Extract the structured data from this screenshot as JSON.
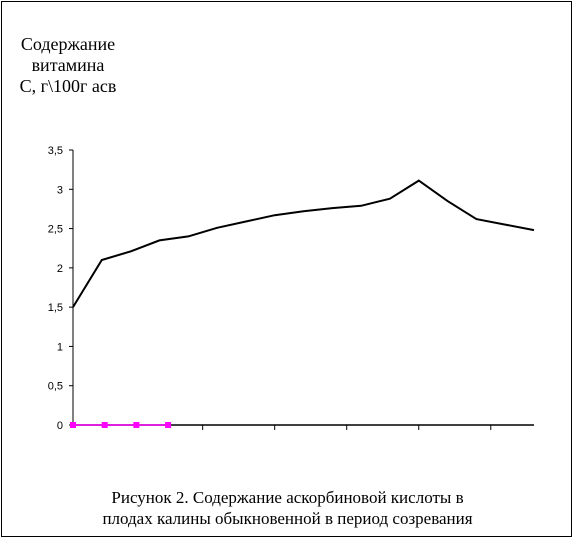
{
  "chart_data": {
    "type": "line",
    "title": "",
    "ylabel_lines": [
      "Содержание",
      "витамина",
      "С, г\\100г асв"
    ],
    "xlabel": "",
    "ylim": [
      0,
      3.5
    ],
    "yticks": [
      "0",
      "0,5",
      "1",
      "1,5",
      "2",
      "2,5",
      "3",
      "3,5"
    ],
    "ytick_values": [
      0,
      0.5,
      1,
      1.5,
      2,
      2.5,
      3,
      3.5
    ],
    "x": [
      1,
      2,
      3,
      4,
      5,
      6,
      7,
      8,
      9,
      10,
      11,
      12,
      13,
      14,
      15,
      16,
      17
    ],
    "xlim": [
      1,
      17
    ],
    "x_major_ticks": [
      5.5,
      8,
      10.5,
      13,
      15.5
    ],
    "series": [
      {
        "color": "#000000",
        "marker": "none",
        "values": [
          1.5,
          2.1,
          2.21,
          2.35,
          2.4,
          2.51,
          2.59,
          2.67,
          2.72,
          2.76,
          2.79,
          2.88,
          3.11,
          2.85,
          2.62,
          2.55,
          2.48
        ]
      },
      {
        "color": "#ff00ff",
        "marker": "square",
        "x": [
          1,
          2.1,
          3.2,
          4.3
        ],
        "values": [
          0,
          0,
          0,
          0
        ]
      }
    ],
    "grid": false,
    "legend": "none"
  },
  "caption": {
    "line1": "Рисунок 2. Содержание аскорбиновой кислоты в",
    "line2": "плодах калины обыкновенной в период созревания"
  }
}
